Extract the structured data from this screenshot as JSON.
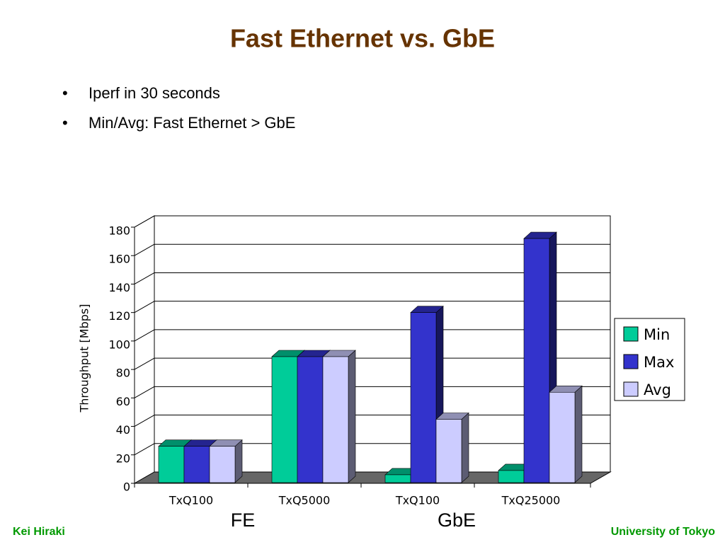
{
  "slide": {
    "title": "Fast Ethernet vs. GbE",
    "bullets": [
      "Iperf in 30 seconds",
      "Min/Avg: Fast Ethernet > GbE"
    ],
    "footer_left": "Kei Hiraki",
    "footer_right": "University of Tokyo"
  },
  "chart_data": {
    "type": "bar3d",
    "y_label": "Throughput [Mbps]",
    "categories": [
      "TxQ100",
      "TxQ5000",
      "TxQ100",
      "TxQ25000"
    ],
    "groups": [
      "FE",
      "GbE"
    ],
    "series": [
      {
        "name": "Min",
        "color": "#00cc99",
        "values": [
          26,
          89,
          6,
          9
        ]
      },
      {
        "name": "Max",
        "color": "#3333cc",
        "values": [
          26,
          89,
          120,
          172
        ]
      },
      {
        "name": "Avg",
        "color": "#ccccff",
        "values": [
          26,
          89,
          45,
          64
        ]
      }
    ],
    "ylim": [
      0,
      180
    ],
    "yticks": [
      0,
      20,
      40,
      60,
      80,
      100,
      120,
      140,
      160,
      180
    ],
    "grid": true,
    "legend": "right"
  }
}
